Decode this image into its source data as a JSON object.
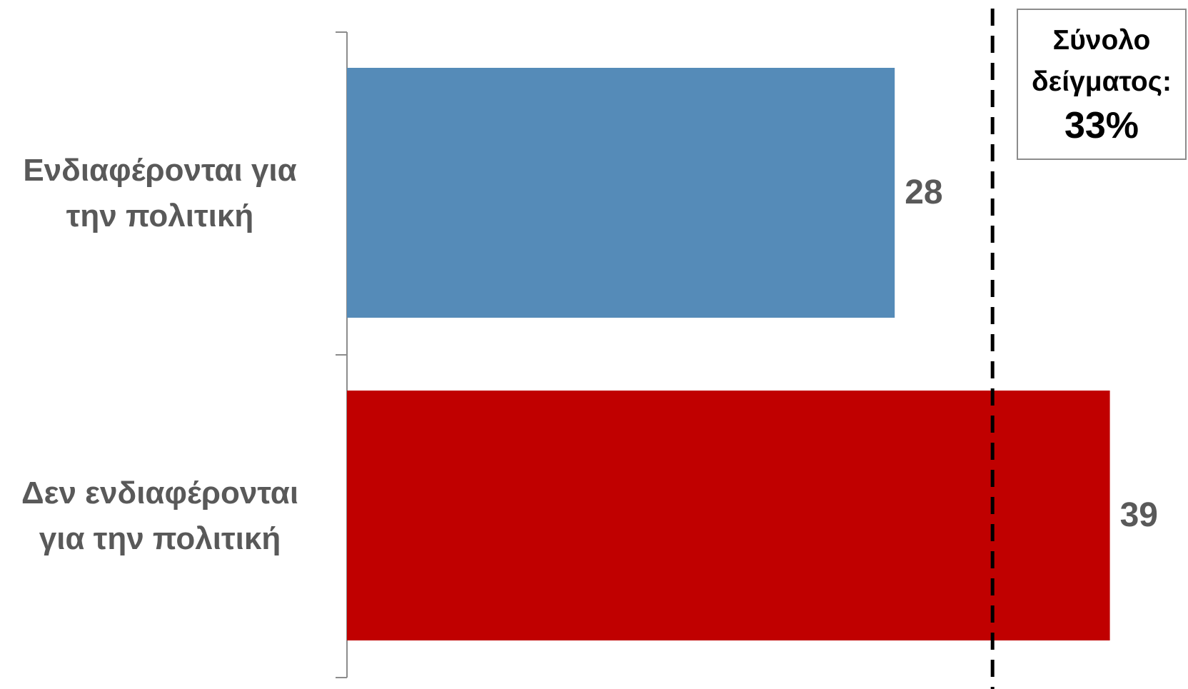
{
  "chart_data": {
    "type": "bar",
    "orientation": "horizontal",
    "categories": [
      "Ενδιαφέρονται για\nτην πολιτική",
      "Δεν ενδιαφέρονται\nγια την πολιτική"
    ],
    "values": [
      28,
      39
    ],
    "data_labels": [
      "28",
      "39"
    ],
    "colors": [
      "#558BB8",
      "#C00000"
    ],
    "xlim": [
      0,
      40
    ],
    "grid": false,
    "legend": "none",
    "reference_line": {
      "value": 33,
      "style": "dashed",
      "color": "#000000",
      "label": "Σύνολο\nδείγματος:",
      "value_label": "33%"
    }
  }
}
